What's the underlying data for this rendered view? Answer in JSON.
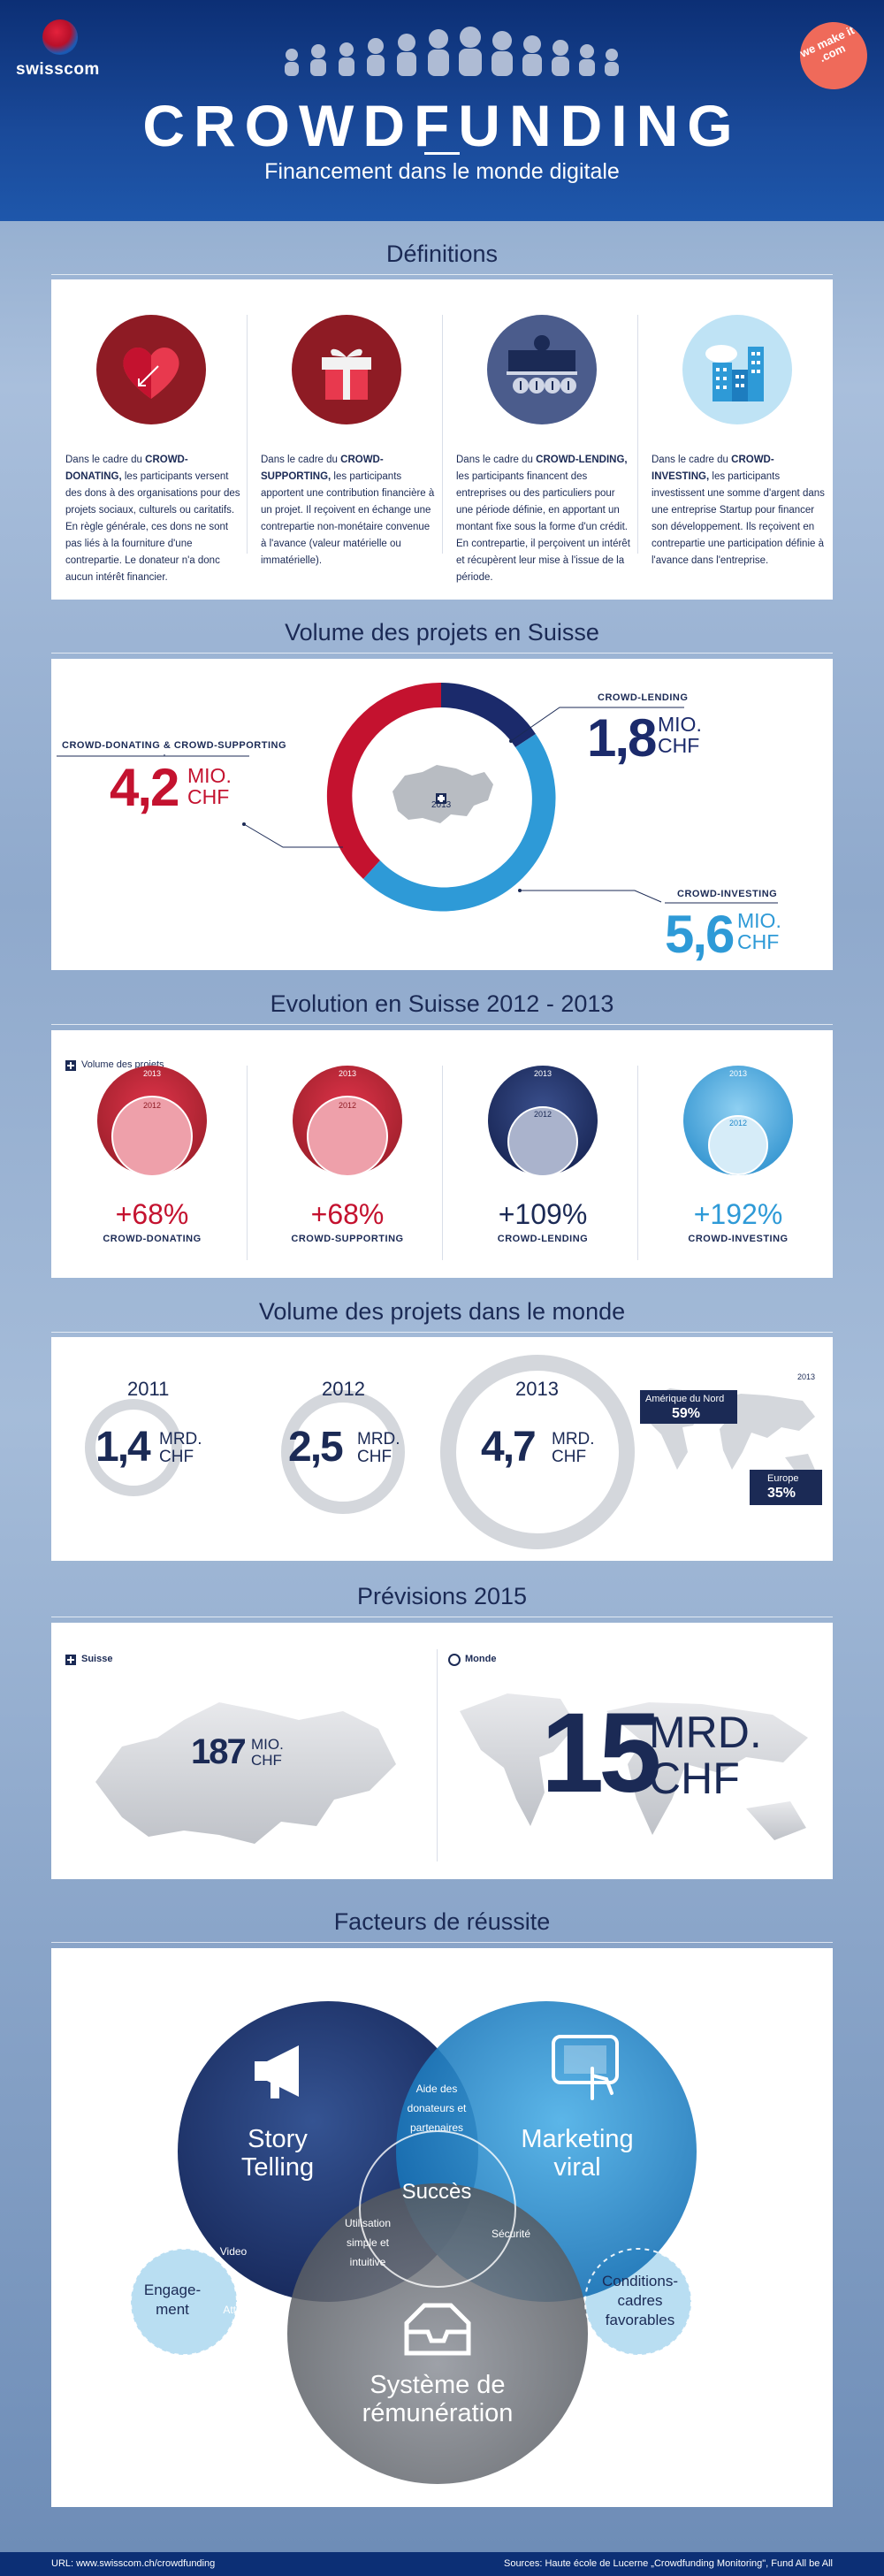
{
  "header": {
    "brand": "swisscom",
    "partner_logo": "we make it .com",
    "title": "CROWDFUNDING",
    "subtitle": "Financement dans le monde digitale"
  },
  "definitions": {
    "title": "Définitions",
    "items": [
      {
        "icon": "heart-icon",
        "prefix": "Dans le cadre du ",
        "term": "CROWD-DONATING,",
        "text": " les participants versent des dons à des organisations pour des projets sociaux, culturels ou caritatifs. En règle générale, ces dons ne sont pas liés à la fourniture d'une contrepartie. Le donateur n'a donc aucun intérêt financier."
      },
      {
        "icon": "gift-icon",
        "prefix": "Dans le cadre du ",
        "term": "CROWD-SUPPORTING,",
        "text": " les participants apportent une contribution financière à un projet. Il reçoivent en échange une contrepartie non-monétaire convenue à l'avance (valeur matérielle ou immatérielle)."
      },
      {
        "icon": "bank-counter-icon",
        "prefix": "Dans le cadre du ",
        "term": "CROWD-LENDING,",
        "text": " les participants financent des entreprises ou des particuliers pour une période définie, en apportant un montant fixe sous la forme d'un crédit. En contrepartie, il perçoivent un intérêt et récupèrent leur mise à l'issue de la période."
      },
      {
        "icon": "buildings-icon",
        "prefix": "Dans le cadre du ",
        "term": "CROWD-INVESTING,",
        "text": " les participants investissent une somme d'argent dans une entreprise Startup pour financer son développement. Ils reçoivent en contrepartie une participation définie à l'avance dans l'entreprise."
      }
    ]
  },
  "volume_suisse": {
    "title": "Volume des projets en Suisse",
    "center_year": "2013",
    "segments": [
      {
        "label": "CROWD-DONATING & CROWD-SUPPORTING",
        "value": "4,2",
        "unit1": "MIO.",
        "unit2": "CHF",
        "color": "#c4122f"
      },
      {
        "label": "CROWD-LENDING",
        "value": "1,8",
        "unit1": "MIO.",
        "unit2": "CHF",
        "color": "#1b2a6b"
      },
      {
        "label": "CROWD-INVESTING",
        "value": "5,6",
        "unit1": "MIO.",
        "unit2": "CHF",
        "color": "#2e9ad7"
      }
    ]
  },
  "evolution": {
    "title": "Evolution en Suisse 2012 - 2013",
    "legend": "Volume des projets",
    "year_new": "2013",
    "year_old": "2012",
    "items": [
      {
        "pct": "+68%",
        "name": "CROWD-DONATING",
        "color": "#c4122f"
      },
      {
        "pct": "+68%",
        "name": "CROWD-SUPPORTING",
        "color": "#c4122f"
      },
      {
        "pct": "+109%",
        "name": "CROWD-LENDING",
        "color": "#1b2a6b"
      },
      {
        "pct": "+192%",
        "name": "CROWD-INVESTING",
        "color": "#2e9ad7"
      }
    ]
  },
  "monde": {
    "title": "Volume des projets dans le monde",
    "years": [
      {
        "year": "2011",
        "value": "1,4",
        "unit1": "MRD.",
        "unit2": "CHF"
      },
      {
        "year": "2012",
        "value": "2,5",
        "unit1": "MRD.",
        "unit2": "CHF"
      },
      {
        "year": "2013",
        "value": "4,7",
        "unit1": "MRD.",
        "unit2": "CHF"
      }
    ],
    "map_year": "2013",
    "na_label": "Amérique du Nord",
    "na_value": "59%",
    "eu_label": "Europe",
    "eu_value": "35%"
  },
  "previsions": {
    "title": "Prévisions 2015",
    "suisse_label": "Suisse",
    "suisse_value": "187",
    "suisse_unit1": "MIO.",
    "suisse_unit2": "CHF",
    "monde_label": "Monde",
    "monde_value": "15",
    "monde_unit1": "MRD.",
    "monde_unit2": "CHF"
  },
  "facteurs": {
    "title": "Facteurs de réussite",
    "story": "Story Telling",
    "story_l1": "Story",
    "story_l2": "Telling",
    "marketing_l1": "Marketing",
    "marketing_l2": "viral",
    "systeme_l1": "Système de",
    "systeme_l2": "rémunération",
    "aide_l1": "Aide des",
    "aide_l2": "donateurs et",
    "aide_l3": "partenaires",
    "succes": "Succès",
    "utilisation_l1": "Utilisation",
    "utilisation_l2": "simple et",
    "utilisation_l3": "intuitive",
    "securite": "Sécurité",
    "video": "Video",
    "attrait": "Attrait",
    "engagement_l1": "Engage-",
    "engagement_l2": "ment",
    "conditions_l1": "Conditions-",
    "conditions_l2": "cadres",
    "conditions_l3": "favorables"
  },
  "footer": {
    "url": "URL: www.swisscom.ch/crowdfunding",
    "sources": "Sources: Haute école de Lucerne „Crowdfunding Monitoring\", Fund All be All"
  }
}
